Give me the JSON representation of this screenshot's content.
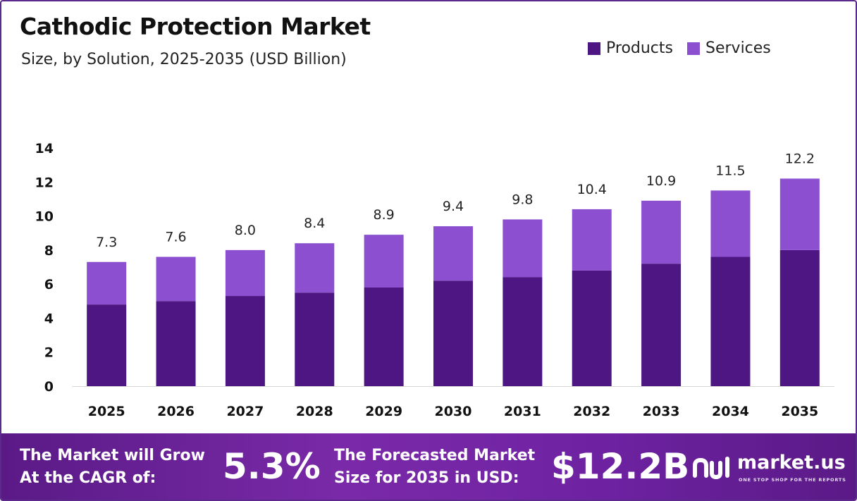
{
  "header": {
    "title": "Cathodic Protection Market",
    "subtitle": "Size, by Solution, 2025-2035 (USD Billion)"
  },
  "legend": [
    {
      "label": "Products",
      "color": "#4e1682"
    },
    {
      "label": "Services",
      "color": "#8c4fd0"
    }
  ],
  "chart_data": {
    "type": "bar",
    "stacked": true,
    "categories": [
      "2025",
      "2026",
      "2027",
      "2028",
      "2029",
      "2030",
      "2031",
      "2032",
      "2033",
      "2034",
      "2035"
    ],
    "series": [
      {
        "name": "Products",
        "color": "#4e1682",
        "values": [
          4.8,
          5.0,
          5.3,
          5.5,
          5.8,
          6.2,
          6.4,
          6.8,
          7.2,
          7.6,
          8.0
        ]
      },
      {
        "name": "Services",
        "color": "#8c4fd0",
        "values": [
          2.5,
          2.6,
          2.7,
          2.9,
          3.1,
          3.2,
          3.4,
          3.6,
          3.7,
          3.9,
          4.2
        ]
      }
    ],
    "totals": [
      "7.3",
      "7.6",
      "8.0",
      "8.4",
      "8.9",
      "9.4",
      "9.8",
      "10.4",
      "10.9",
      "11.5",
      "12.2"
    ],
    "yticks": [
      0,
      2,
      4,
      6,
      8,
      10,
      12,
      14
    ],
    "ylim": [
      0,
      14
    ],
    "grid": false,
    "legend_position": "top-right"
  },
  "footer": {
    "cagr_label_line1": "The Market will Grow",
    "cagr_label_line2": "At the CAGR of:",
    "cagr_value": "5.3%",
    "forecast_label_line1": "The Forecasted Market",
    "forecast_label_line2": "Size for 2035 in USD:",
    "forecast_value": "$12.2B",
    "brand_name": "market.us",
    "brand_tagline": "ONE STOP SHOP FOR THE REPORTS"
  }
}
